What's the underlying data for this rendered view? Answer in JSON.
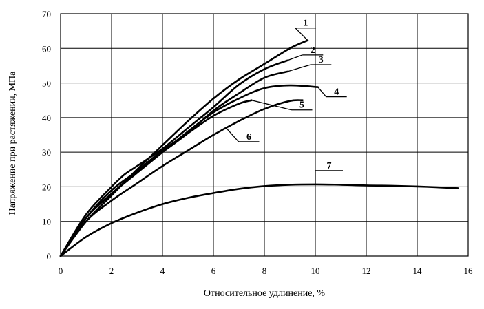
{
  "chart_data": {
    "type": "line",
    "xlabel": "Относительное удлинение, %",
    "ylabel": "Напряжение при растяжении, МПа",
    "xlim": [
      0,
      16
    ],
    "ylim": [
      0,
      70
    ],
    "x_ticks": [
      0,
      2,
      4,
      6,
      8,
      10,
      12,
      14,
      16
    ],
    "y_ticks": [
      0,
      10,
      20,
      30,
      40,
      50,
      60,
      70
    ],
    "grid": true,
    "colors": {
      "curve": "#000000",
      "grid": "#000000",
      "axis": "#000000"
    },
    "series": [
      {
        "name": "1",
        "x": [
          0,
          1,
          2,
          3,
          4,
          5,
          6,
          7,
          8,
          9,
          9.7
        ],
        "y": [
          0,
          10,
          17.5,
          25,
          32,
          39,
          45.5,
          51,
          55.5,
          60,
          62.3
        ]
      },
      {
        "name": "2",
        "x": [
          0,
          1,
          2,
          2.5,
          3,
          4,
          5,
          6,
          7,
          8,
          8.9
        ],
        "y": [
          0,
          12,
          20,
          23.5,
          26,
          31,
          37,
          43,
          49.5,
          54,
          56.5
        ]
      },
      {
        "name": "3",
        "x": [
          0,
          1,
          2,
          3,
          4,
          5,
          6,
          7,
          8,
          8.9
        ],
        "y": [
          0,
          11,
          19,
          24.5,
          30,
          35.5,
          42,
          47,
          51.5,
          53.3
        ]
      },
      {
        "name": "4",
        "x": [
          0,
          1,
          2,
          3,
          4,
          5,
          6,
          7,
          8,
          9,
          10.1
        ],
        "y": [
          0,
          11,
          18,
          24,
          30,
          36,
          41.5,
          45.5,
          48.5,
          49.3,
          48.8
        ]
      },
      {
        "name": "5",
        "x": [
          0,
          1,
          2,
          3,
          4,
          5,
          6,
          7,
          7.5
        ],
        "y": [
          0,
          11,
          18,
          24.5,
          30.5,
          35.5,
          40.5,
          44,
          45
        ]
      },
      {
        "name": "6",
        "x": [
          0,
          1,
          2,
          3,
          4,
          5,
          6,
          7,
          8,
          9,
          9.5
        ],
        "y": [
          0,
          10,
          16,
          21,
          26,
          30.5,
          35,
          39,
          42.5,
          44.8,
          45
        ]
      },
      {
        "name": "7",
        "x": [
          0,
          1,
          2,
          3,
          4,
          5,
          6,
          7,
          8,
          9,
          10,
          11,
          12,
          13,
          14,
          15,
          15.6
        ],
        "y": [
          0,
          5.5,
          9.5,
          12.5,
          15,
          16.8,
          18.2,
          19.4,
          20.2,
          20.6,
          20.7,
          20.6,
          20.4,
          20.3,
          20.1,
          19.8,
          19.6
        ]
      }
    ],
    "labels": [
      {
        "text": "1",
        "anchor_x": 9.7,
        "anchor_y": 62.3
      },
      {
        "text": "2",
        "anchor_x": 8.9,
        "anchor_y": 56.5
      },
      {
        "text": "3",
        "anchor_x": 8.9,
        "anchor_y": 53.3
      },
      {
        "text": "4",
        "anchor_x": 10.1,
        "anchor_y": 48.8
      },
      {
        "text": "5",
        "anchor_x": 7.5,
        "anchor_y": 45
      },
      {
        "text": "6",
        "anchor_x": 6.5,
        "anchor_y": 37
      },
      {
        "text": "7",
        "anchor_x": 10,
        "anchor_y": 20.7
      }
    ]
  }
}
